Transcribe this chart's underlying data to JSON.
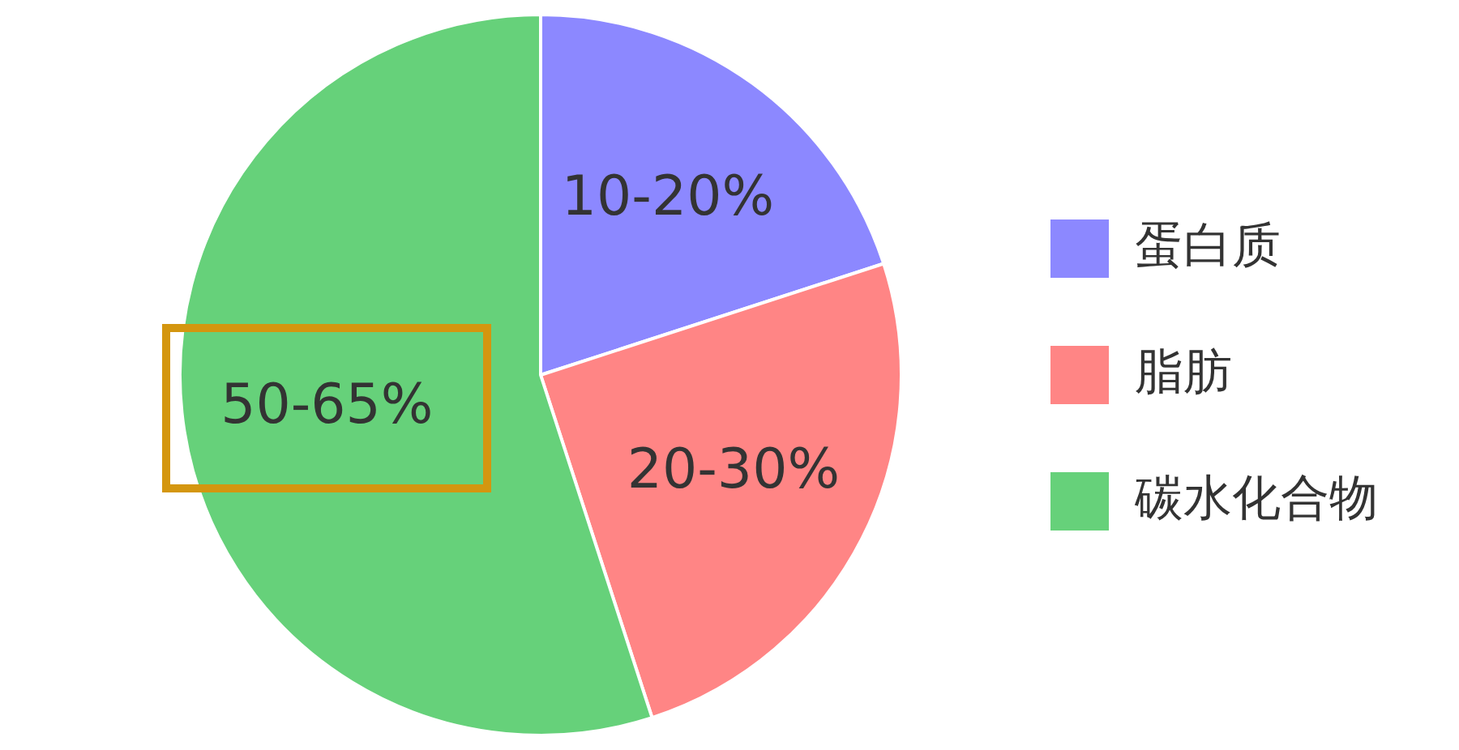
{
  "chart_data": {
    "type": "pie",
    "categories": [
      "蛋白质",
      "脂肪",
      "碳水化合物"
    ],
    "values": [
      20,
      25,
      55
    ],
    "colors": [
      "#8c88ff",
      "#ff8585",
      "#66d17a"
    ],
    "annotations": [
      "10-20%",
      "20-30%",
      "50-65%"
    ],
    "legend": "right"
  }
}
